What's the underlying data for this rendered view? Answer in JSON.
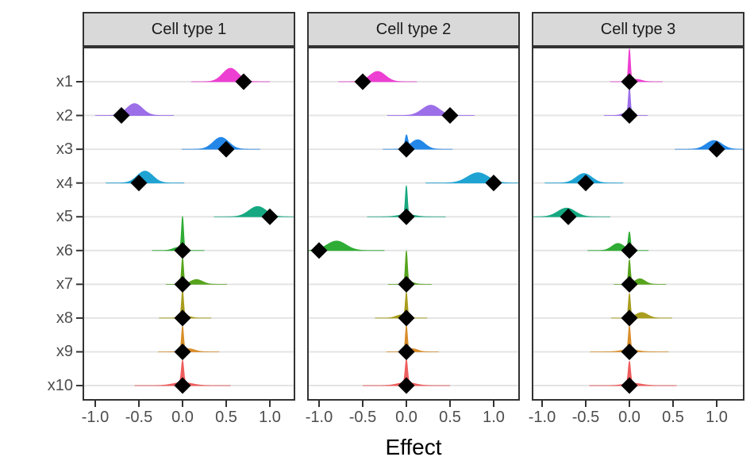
{
  "axis": {
    "x_label": "Effect",
    "x_tick_labels": [
      "-1.0",
      "-0.5",
      "0.0",
      "0.5",
      "1.0"
    ],
    "x_tick_values": [
      -1.0,
      -0.5,
      0.0,
      0.5,
      1.0
    ],
    "y_categories": [
      "x1",
      "x2",
      "x3",
      "x4",
      "x5",
      "x6",
      "x7",
      "x8",
      "x9",
      "x10"
    ]
  },
  "style": {
    "row_colors": [
      "#ed3fd2",
      "#9c6fe9",
      "#2387e8",
      "#1ea3d3",
      "#16a880",
      "#2fac35",
      "#56a41d",
      "#a89d1e",
      "#d98e2b",
      "#ee5e5e"
    ],
    "diamond_color": "#000000",
    "gridline_color": "#e4e4e4",
    "panel_bg": "#ffffff",
    "border_color": "#333333",
    "strip_bg": "#d9d9d9",
    "axis_text_color": "#4d4d4d"
  },
  "chart_data": {
    "type": "ridgeline",
    "xlabel": "Effect",
    "x_range": [
      -1.15,
      1.3
    ],
    "density_component_format": "[center, sd, peak_height_px]",
    "facets": [
      {
        "label": "Cell type 1",
        "rows": [
          {
            "var": "x1",
            "point": 0.7,
            "density": [
              [
                0.55,
                0.09,
                17
              ]
            ]
          },
          {
            "var": "x2",
            "point": -0.7,
            "density": [
              [
                -0.55,
                0.09,
                15
              ]
            ]
          },
          {
            "var": "x3",
            "point": 0.5,
            "density": [
              [
                0.44,
                0.09,
                15
              ]
            ]
          },
          {
            "var": "x4",
            "point": -0.5,
            "density": [
              [
                -0.43,
                0.09,
                15
              ]
            ]
          },
          {
            "var": "x5",
            "point": 1.0,
            "density": [
              [
                0.86,
                0.1,
                13
              ]
            ]
          },
          {
            "var": "x6",
            "point": 0.0,
            "density": [
              [
                0,
                0.012,
                40
              ],
              [
                -0.05,
                0.06,
                4
              ]
            ]
          },
          {
            "var": "x7",
            "point": 0.0,
            "density": [
              [
                0,
                0.012,
                33
              ],
              [
                0.16,
                0.07,
                6
              ]
            ]
          },
          {
            "var": "x8",
            "point": 0.0,
            "density": [
              [
                0,
                0.012,
                32
              ],
              [
                0.03,
                0.06,
                3
              ]
            ]
          },
          {
            "var": "x9",
            "point": 0.0,
            "density": [
              [
                0,
                0.012,
                30
              ],
              [
                0.07,
                0.07,
                4
              ]
            ]
          },
          {
            "var": "x10",
            "point": 0.0,
            "density": [
              [
                0,
                0.014,
                28
              ],
              [
                0,
                0.11,
                4
              ]
            ]
          }
        ]
      },
      {
        "label": "Cell type 2",
        "rows": [
          {
            "var": "x1",
            "point": -0.5,
            "density": [
              [
                -0.33,
                0.09,
                13
              ]
            ]
          },
          {
            "var": "x2",
            "point": 0.5,
            "density": [
              [
                0.28,
                0.1,
                13
              ]
            ]
          },
          {
            "var": "x3",
            "point": 0.0,
            "density": [
              [
                0.13,
                0.08,
                12
              ],
              [
                0,
                0.015,
                15
              ]
            ]
          },
          {
            "var": "x4",
            "point": 1.0,
            "density": [
              [
                0.82,
                0.12,
                13
              ]
            ]
          },
          {
            "var": "x5",
            "point": 0.0,
            "density": [
              [
                0,
                0.012,
                36
              ],
              [
                0,
                0.09,
                3
              ]
            ]
          },
          {
            "var": "x6",
            "point": -1.0,
            "density": [
              [
                -0.8,
                0.11,
                12
              ]
            ]
          },
          {
            "var": "x7",
            "point": 0.0,
            "density": [
              [
                0,
                0.012,
                40
              ],
              [
                0.04,
                0.05,
                3
              ]
            ]
          },
          {
            "var": "x8",
            "point": 0.0,
            "density": [
              [
                0,
                0.012,
                30
              ],
              [
                -0.06,
                0.06,
                4
              ]
            ]
          },
          {
            "var": "x9",
            "point": 0.0,
            "density": [
              [
                0,
                0.012,
                31
              ],
              [
                0.07,
                0.06,
                4
              ]
            ]
          },
          {
            "var": "x10",
            "point": 0.0,
            "density": [
              [
                0,
                0.014,
                29
              ],
              [
                0,
                0.1,
                4
              ]
            ]
          }
        ]
      },
      {
        "label": "Cell type 3",
        "rows": [
          {
            "var": "x1",
            "point": 0.0,
            "density": [
              [
                0,
                0.012,
                40
              ],
              [
                0.08,
                0.06,
                3
              ]
            ]
          },
          {
            "var": "x2",
            "point": 0.0,
            "density": [
              [
                0,
                0.012,
                33
              ],
              [
                -0.04,
                0.05,
                3
              ]
            ]
          },
          {
            "var": "x3",
            "point": 1.0,
            "density": [
              [
                0.97,
                0.09,
                11
              ]
            ]
          },
          {
            "var": "x4",
            "point": -0.5,
            "density": [
              [
                -0.52,
                0.09,
                12
              ]
            ]
          },
          {
            "var": "x5",
            "point": -0.7,
            "density": [
              [
                -0.72,
                0.1,
                11
              ]
            ]
          },
          {
            "var": "x6",
            "point": 0.0,
            "density": [
              [
                0,
                0.013,
                22
              ],
              [
                -0.13,
                0.07,
                9
              ]
            ]
          },
          {
            "var": "x7",
            "point": 0.0,
            "density": [
              [
                0,
                0.012,
                30
              ],
              [
                0.12,
                0.06,
                7
              ]
            ]
          },
          {
            "var": "x8",
            "point": 0.0,
            "density": [
              [
                0,
                0.012,
                30
              ],
              [
                0.14,
                0.07,
                7
              ]
            ]
          },
          {
            "var": "x9",
            "point": 0.0,
            "density": [
              [
                0,
                0.012,
                30
              ],
              [
                0,
                0.09,
                3
              ]
            ]
          },
          {
            "var": "x10",
            "point": 0.0,
            "density": [
              [
                0,
                0.014,
                28
              ],
              [
                0.04,
                0.1,
                3
              ]
            ]
          }
        ]
      }
    ]
  }
}
